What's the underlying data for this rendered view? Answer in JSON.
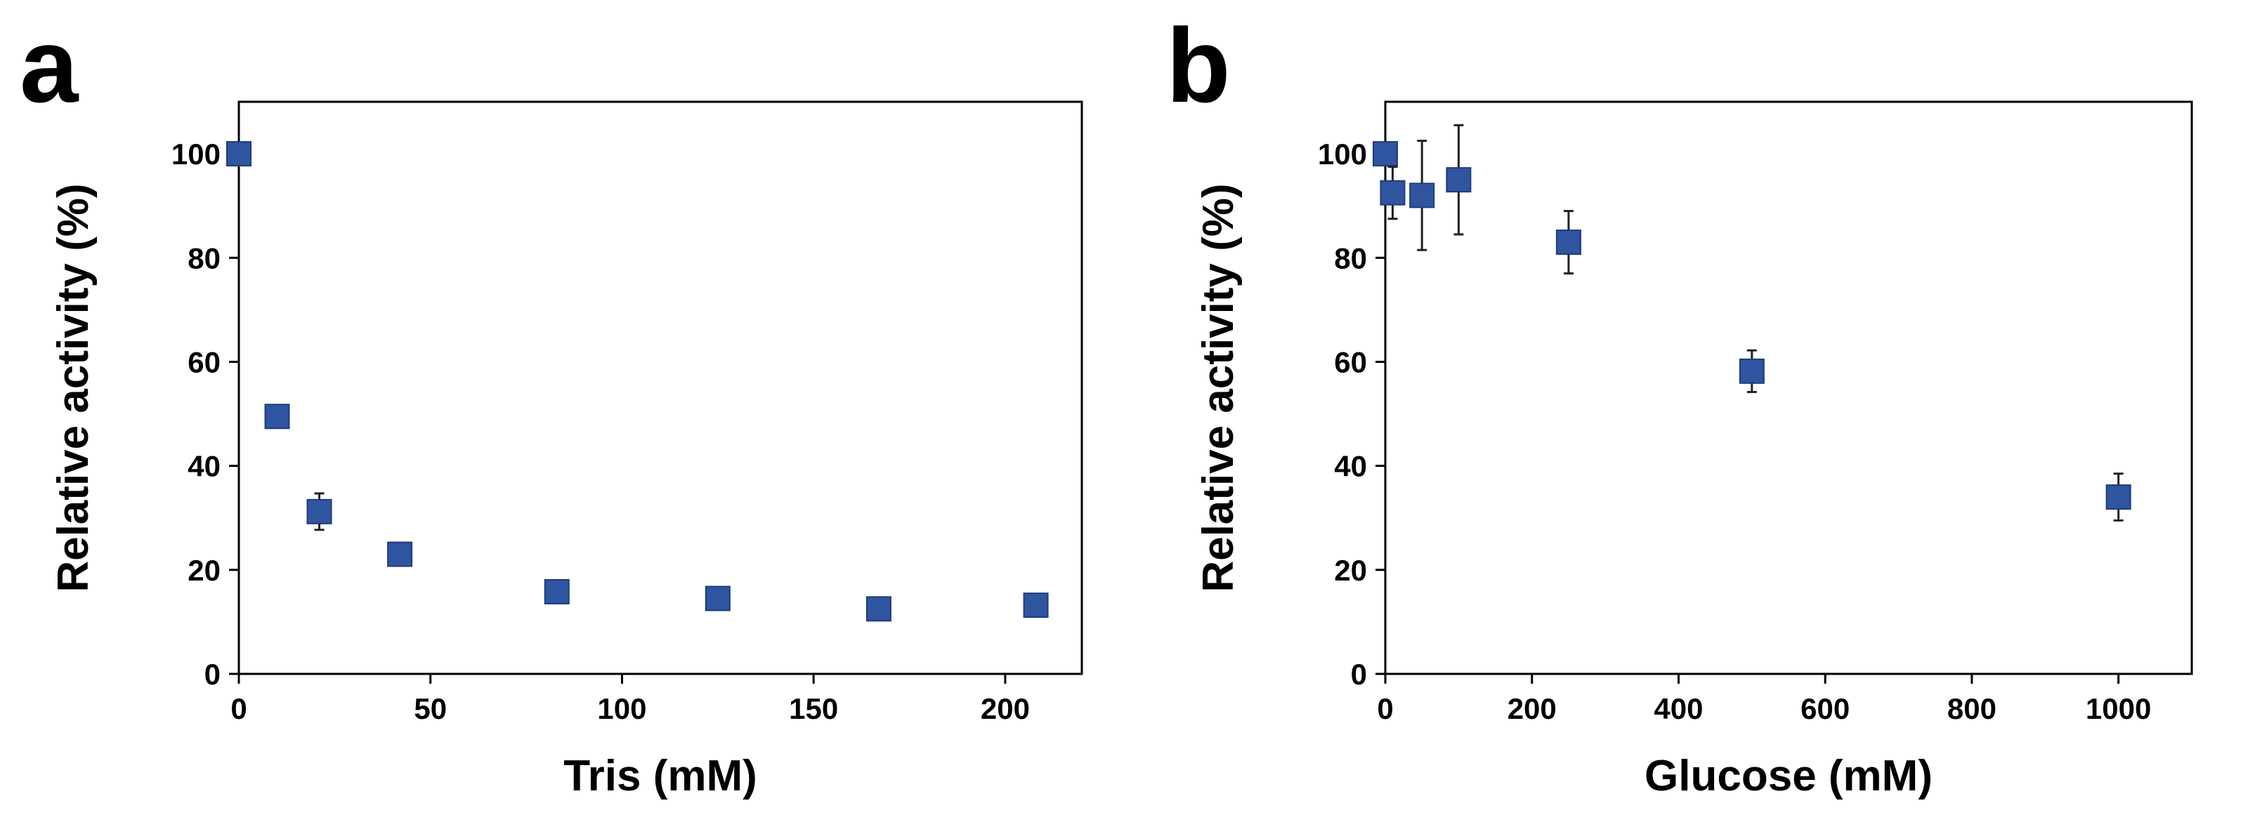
{
  "chart_data": [
    {
      "panel_label": "a",
      "type": "scatter",
      "xlabel": "Tris (mM)",
      "ylabel": "Relative activity (%)",
      "xlim": [
        0,
        220
      ],
      "ylim": [
        0,
        110
      ],
      "xticks": [
        0,
        50,
        100,
        150,
        200
      ],
      "yticks": [
        0,
        20,
        40,
        60,
        80,
        100
      ],
      "xtick_labels": [
        "0",
        "50",
        "100",
        "150",
        "200"
      ],
      "ytick_labels": [
        "0",
        "20",
        "40",
        "60",
        "80",
        "100"
      ],
      "marker_color": "#2F55A0",
      "series": [
        {
          "name": "Tris",
          "points": [
            {
              "x": 0,
              "y": 100,
              "err": 1.5
            },
            {
              "x": 10,
              "y": 49.5,
              "err": 1.5
            },
            {
              "x": 21,
              "y": 31.2,
              "err": 3.5
            },
            {
              "x": 42,
              "y": 23,
              "err": 1
            },
            {
              "x": 83,
              "y": 15.8,
              "err": 1.8
            },
            {
              "x": 125,
              "y": 14.5,
              "err": 1
            },
            {
              "x": 167,
              "y": 12.5,
              "err": 1
            },
            {
              "x": 208,
              "y": 13.2,
              "err": 1
            }
          ]
        }
      ]
    },
    {
      "panel_label": "b",
      "type": "scatter",
      "xlabel": "Glucose (mM)",
      "ylabel": "Relative activity (%)",
      "xlim": [
        0,
        1100
      ],
      "ylim": [
        0,
        110
      ],
      "xticks": [
        0,
        200,
        400,
        600,
        800,
        1000
      ],
      "yticks": [
        0,
        20,
        40,
        60,
        80,
        100
      ],
      "xtick_labels": [
        "0",
        "200",
        "400",
        "600",
        "800",
        "1000"
      ],
      "ytick_labels": [
        "0",
        "20",
        "40",
        "60",
        "80",
        "100"
      ],
      "marker_color": "#2F55A0",
      "series": [
        {
          "name": "Glucose",
          "points": [
            {
              "x": 0,
              "y": 100,
              "err": 2
            },
            {
              "x": 10,
              "y": 92.5,
              "err": 5
            },
            {
              "x": 50,
              "y": 92,
              "err": 10.5
            },
            {
              "x": 100,
              "y": 95,
              "err": 10.5
            },
            {
              "x": 250,
              "y": 83,
              "err": 6
            },
            {
              "x": 500,
              "y": 58.2,
              "err": 4
            },
            {
              "x": 1000,
              "y": 34,
              "err": 4.5
            }
          ]
        }
      ]
    }
  ]
}
